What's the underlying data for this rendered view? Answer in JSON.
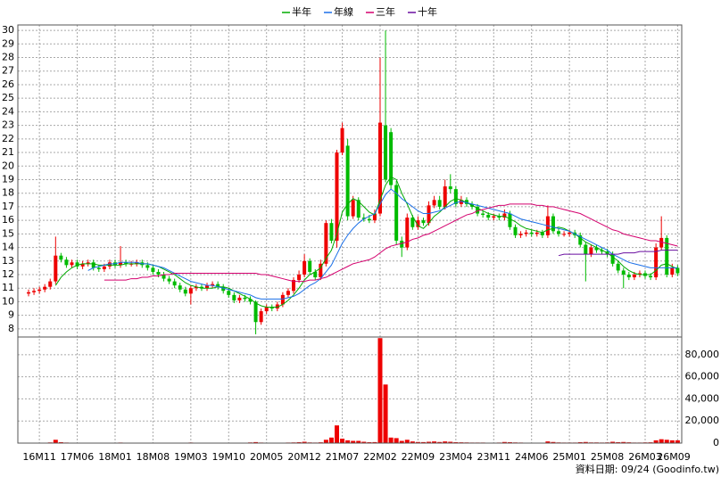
{
  "chart_data": {
    "type": "candlestick",
    "legend": "top",
    "grid": true,
    "source": "資料日期: 09/24 (Goodinfo.tw)",
    "up_color": "#ee0000",
    "down_color": "#00bb00",
    "categories": [
      null,
      null,
      "16M11",
      null,
      null,
      null,
      null,
      null,
      null,
      "17M06",
      null,
      null,
      null,
      null,
      null,
      null,
      "18M01",
      null,
      null,
      null,
      null,
      null,
      null,
      "18M08",
      null,
      null,
      null,
      null,
      null,
      null,
      "19M03",
      null,
      null,
      null,
      null,
      null,
      null,
      "19M10",
      null,
      null,
      null,
      null,
      null,
      null,
      "20M05",
      null,
      null,
      null,
      null,
      null,
      null,
      "20M12",
      null,
      null,
      null,
      null,
      null,
      null,
      "21M07",
      null,
      null,
      null,
      null,
      null,
      null,
      "22M02",
      null,
      null,
      null,
      null,
      null,
      null,
      "22M09",
      null,
      null,
      null,
      null,
      null,
      null,
      "23M04",
      null,
      null,
      null,
      null,
      null,
      null,
      "23M11",
      null,
      null,
      null,
      null,
      null,
      null,
      "24M06",
      null,
      null,
      null,
      null,
      null,
      null,
      "25M01",
      null,
      null,
      null,
      null,
      null,
      null,
      "25M08",
      null,
      null,
      null,
      null,
      null,
      null,
      "26M03",
      null,
      null,
      null,
      null,
      null,
      "26M09"
    ],
    "open": [
      10.6,
      10.7,
      10.8,
      10.9,
      11.1,
      11.5,
      13.4,
      13.1,
      12.7,
      12.9,
      12.6,
      12.8,
      12.9,
      12.5,
      12.4,
      12.6,
      12.9,
      12.7,
      12.9,
      12.8,
      12.8,
      12.9,
      12.7,
      12.5,
      12.2,
      12.0,
      11.7,
      11.5,
      11.2,
      10.9,
      10.6,
      11.0,
      11.1,
      11.0,
      11.2,
      11.3,
      11.1,
      10.8,
      10.5,
      10.1,
      10.3,
      10.2,
      10.0,
      8.5,
      9.3,
      9.6,
      9.5,
      9.8,
      10.5,
      10.8,
      11.6,
      12.0,
      13.0,
      12.2,
      11.8,
      12.8,
      15.8,
      14.5,
      21.0,
      21.5,
      16.3,
      17.5,
      16.2,
      16.1,
      16.0,
      16.5,
      23.0,
      22.5,
      18.6,
      14.5,
      14.0,
      16.2,
      15.5,
      16.0,
      15.8,
      17.1,
      17.5,
      17.0,
      18.5,
      18.3,
      17.2,
      17.5,
      17.2,
      17.0,
      16.5,
      16.4,
      16.2,
      16.3,
      16.2,
      16.5,
      15.5,
      14.9,
      15.0,
      15.1,
      15.0,
      15.1,
      14.9,
      16.3,
      15.2,
      15.0,
      15.0,
      15.1,
      14.9,
      14.2,
      13.5,
      14.0,
      13.8,
      13.7,
      13.5,
      12.8,
      12.3,
      12.0,
      11.8,
      12.0,
      12.1,
      11.9,
      11.8,
      14.0,
      14.7,
      12.0,
      12.5
    ],
    "high": [
      10.9,
      11.0,
      11.1,
      11.3,
      11.7,
      14.8,
      13.6,
      13.3,
      13.1,
      13.1,
      13.0,
      13.1,
      13.1,
      12.7,
      12.8,
      13.1,
      13.1,
      14.1,
      13.1,
      13.0,
      13.1,
      13.1,
      12.9,
      12.7,
      12.4,
      12.2,
      11.9,
      11.7,
      11.4,
      11.1,
      11.2,
      11.3,
      11.3,
      11.4,
      11.5,
      11.5,
      11.3,
      11.0,
      10.7,
      10.5,
      10.5,
      10.4,
      10.1,
      9.5,
      9.8,
      9.8,
      10.0,
      10.7,
      11.0,
      11.8,
      12.3,
      13.5,
      13.2,
      12.4,
      13.1,
      16.0,
      16.1,
      21.2,
      23.2,
      22.0,
      17.8,
      17.7,
      16.5,
      16.4,
      16.8,
      28.0,
      30.0,
      22.8,
      18.9,
      14.8,
      16.5,
      16.4,
      16.3,
      16.2,
      17.4,
      17.8,
      17.8,
      19.0,
      19.4,
      18.5,
      17.8,
      17.7,
      17.4,
      17.2,
      16.7,
      16.6,
      16.5,
      16.5,
      16.8,
      16.7,
      15.7,
      15.2,
      15.3,
      15.3,
      15.3,
      15.3,
      17.1,
      16.5,
      15.4,
      15.2,
      15.3,
      15.3,
      15.1,
      14.4,
      14.2,
      14.2,
      14.0,
      13.9,
      13.7,
      13.0,
      12.5,
      12.2,
      12.2,
      12.3,
      12.3,
      12.1,
      14.3,
      16.3,
      14.9,
      12.8,
      12.7
    ],
    "low": [
      10.4,
      10.5,
      10.6,
      10.7,
      10.9,
      11.3,
      12.9,
      12.5,
      12.5,
      12.4,
      12.4,
      12.6,
      12.3,
      12.2,
      12.2,
      12.4,
      12.5,
      12.5,
      12.6,
      12.6,
      12.6,
      12.5,
      12.3,
      12.0,
      11.8,
      11.5,
      11.3,
      11.0,
      10.7,
      10.4,
      9.8,
      10.8,
      10.8,
      10.8,
      11.0,
      10.9,
      10.6,
      10.3,
      9.9,
      9.9,
      10.0,
      9.8,
      7.6,
      8.3,
      9.1,
      9.3,
      9.3,
      9.6,
      10.3,
      10.6,
      11.4,
      11.8,
      12.0,
      11.6,
      11.6,
      12.6,
      14.3,
      14.0,
      20.8,
      16.0,
      16.1,
      16.0,
      15.9,
      15.8,
      15.8,
      16.3,
      18.8,
      18.3,
      14.2,
      13.3,
      13.8,
      15.3,
      15.3,
      15.6,
      15.6,
      16.9,
      16.8,
      16.8,
      18.0,
      17.0,
      17.0,
      17.0,
      16.8,
      16.3,
      16.2,
      16.0,
      16.0,
      16.0,
      16.0,
      15.3,
      14.7,
      14.7,
      14.8,
      14.8,
      14.8,
      14.7,
      14.7,
      15.0,
      14.8,
      14.8,
      14.8,
      14.7,
      14.0,
      11.5,
      13.3,
      13.6,
      13.5,
      13.3,
      12.6,
      12.1,
      11.0,
      11.6,
      11.6,
      11.8,
      11.7,
      11.6,
      11.6,
      13.8,
      11.8,
      11.8,
      11.9
    ],
    "close": [
      10.7,
      10.8,
      10.9,
      11.1,
      11.5,
      13.4,
      13.1,
      12.7,
      12.9,
      12.6,
      12.8,
      12.9,
      12.5,
      12.4,
      12.6,
      12.9,
      12.7,
      12.9,
      12.8,
      12.8,
      12.9,
      12.7,
      12.5,
      12.2,
      12.0,
      11.7,
      11.5,
      11.2,
      10.9,
      10.6,
      11.0,
      11.1,
      11.0,
      11.2,
      11.3,
      11.1,
      10.8,
      10.5,
      10.1,
      10.3,
      10.2,
      10.0,
      8.5,
      9.3,
      9.6,
      9.5,
      9.8,
      10.5,
      10.8,
      11.6,
      12.0,
      13.0,
      12.2,
      11.8,
      12.8,
      15.8,
      14.5,
      21.0,
      22.8,
      16.3,
      17.5,
      16.2,
      16.1,
      16.0,
      16.5,
      23.2,
      19.0,
      18.6,
      14.5,
      14.0,
      16.2,
      15.5,
      16.0,
      15.8,
      17.1,
      17.5,
      17.0,
      18.5,
      18.3,
      17.2,
      17.5,
      17.2,
      17.0,
      16.5,
      16.4,
      16.2,
      16.3,
      16.2,
      16.5,
      15.5,
      14.9,
      15.0,
      15.1,
      15.0,
      15.1,
      14.9,
      16.3,
      15.2,
      15.0,
      15.0,
      15.1,
      14.9,
      14.2,
      13.5,
      14.0,
      13.8,
      13.7,
      13.5,
      12.8,
      12.3,
      12.0,
      11.8,
      12.0,
      12.1,
      11.9,
      11.8,
      14.0,
      14.7,
      12.0,
      12.5,
      12.1
    ],
    "series": [
      {
        "name": "半年",
        "color": "#00aa00",
        "values": [
          null,
          null,
          null,
          null,
          null,
          11.2,
          11.8,
          12.2,
          12.5,
          12.7,
          12.8,
          12.8,
          12.8,
          12.7,
          12.7,
          12.7,
          12.7,
          12.7,
          12.8,
          12.8,
          12.8,
          12.8,
          12.8,
          12.7,
          12.6,
          12.4,
          12.2,
          12.0,
          11.7,
          11.4,
          11.2,
          11.1,
          11.0,
          11.0,
          11.0,
          11.1,
          11.1,
          11.0,
          10.8,
          10.6,
          10.4,
          10.2,
          9.9,
          9.7,
          9.6,
          9.6,
          9.6,
          9.8,
          10.1,
          10.5,
          11.0,
          11.6,
          12.0,
          12.2,
          12.5,
          13.2,
          13.8,
          15.0,
          16.6,
          17.2,
          17.6,
          17.4,
          17.0,
          16.6,
          16.4,
          17.5,
          18.6,
          19.2,
          19.0,
          18.0,
          17.2,
          16.3,
          15.6,
          15.4,
          15.8,
          16.3,
          16.6,
          17.0,
          17.4,
          17.6,
          17.5,
          17.3,
          17.1,
          16.9,
          16.7,
          16.5,
          16.4,
          16.3,
          16.3,
          16.1,
          15.9,
          15.6,
          15.4,
          15.3,
          15.2,
          15.1,
          15.3,
          15.4,
          15.5,
          15.4,
          15.2,
          15.0,
          14.7,
          14.4,
          14.2,
          14.0,
          13.8,
          13.6,
          13.3,
          13.0,
          12.6,
          12.3,
          12.1,
          12.0,
          12.0,
          12.0,
          12.3,
          12.7,
          12.8,
          12.6,
          12.4
        ]
      },
      {
        "name": "年線",
        "color": "#1a6fe8",
        "values": [
          null,
          null,
          null,
          null,
          null,
          null,
          null,
          null,
          null,
          null,
          null,
          12.3,
          12.5,
          12.6,
          12.7,
          12.8,
          12.8,
          12.9,
          12.9,
          12.9,
          12.9,
          12.8,
          12.8,
          12.7,
          12.6,
          12.5,
          12.3,
          12.1,
          11.9,
          11.7,
          11.5,
          11.4,
          11.3,
          11.2,
          11.2,
          11.1,
          11.0,
          10.9,
          10.8,
          10.7,
          10.6,
          10.5,
          10.3,
          10.2,
          10.2,
          10.2,
          10.2,
          10.2,
          10.3,
          10.4,
          10.6,
          10.9,
          11.2,
          11.4,
          11.7,
          12.2,
          12.7,
          13.5,
          14.3,
          14.9,
          15.4,
          15.8,
          16.1,
          16.3,
          16.5,
          17.2,
          17.9,
          18.3,
          18.0,
          17.6,
          17.3,
          17.0,
          16.7,
          16.5,
          16.5,
          16.6,
          16.7,
          16.9,
          17.1,
          17.3,
          17.4,
          17.3,
          17.2,
          17.1,
          17.0,
          16.9,
          16.8,
          16.7,
          16.6,
          16.5,
          16.3,
          16.1,
          16.0,
          15.9,
          15.8,
          15.7,
          15.6,
          15.5,
          15.4,
          15.3,
          15.2,
          15.0,
          14.8,
          14.6,
          14.4,
          14.2,
          14.0,
          13.8,
          13.5,
          13.3,
          13.1,
          12.9,
          12.8,
          12.7,
          12.6,
          12.5,
          12.5,
          12.5,
          12.5,
          12.5,
          12.5
        ]
      },
      {
        "name": "三年",
        "color": "#d4006e",
        "values": [
          null,
          null,
          null,
          null,
          null,
          null,
          null,
          null,
          null,
          null,
          null,
          null,
          null,
          null,
          11.6,
          11.6,
          11.6,
          11.6,
          11.6,
          11.7,
          11.7,
          11.8,
          11.8,
          11.9,
          11.9,
          12.0,
          12.0,
          12.1,
          12.1,
          12.1,
          12.1,
          12.1,
          12.1,
          12.1,
          12.1,
          12.1,
          12.1,
          12.1,
          12.1,
          12.1,
          12.1,
          12.1,
          12.1,
          12.0,
          12.0,
          11.9,
          11.8,
          11.7,
          11.6,
          11.5,
          11.5,
          11.5,
          11.6,
          11.6,
          11.7,
          11.8,
          12.0,
          12.2,
          12.4,
          12.6,
          12.8,
          12.9,
          13.0,
          13.1,
          13.3,
          13.6,
          13.9,
          14.1,
          14.2,
          14.3,
          14.4,
          14.6,
          14.7,
          14.9,
          15.0,
          15.2,
          15.4,
          15.6,
          15.8,
          16.0,
          16.2,
          16.4,
          16.5,
          16.7,
          16.8,
          16.9,
          17.0,
          17.1,
          17.1,
          17.2,
          17.2,
          17.2,
          17.2,
          17.2,
          17.1,
          17.1,
          17.0,
          17.0,
          16.9,
          16.8,
          16.7,
          16.6,
          16.5,
          16.3,
          16.1,
          15.9,
          15.7,
          15.5,
          15.3,
          15.2,
          15.0,
          14.9,
          14.8,
          14.7,
          14.6,
          14.5,
          14.5,
          14.4,
          14.3,
          14.2,
          14.1
        ]
      },
      {
        "name": "十年",
        "color": "#6a0fa0",
        "values": [
          null,
          null,
          null,
          null,
          null,
          null,
          null,
          null,
          null,
          null,
          null,
          null,
          null,
          null,
          null,
          null,
          null,
          null,
          null,
          null,
          null,
          null,
          null,
          null,
          null,
          null,
          null,
          null,
          null,
          null,
          null,
          null,
          null,
          null,
          null,
          null,
          null,
          null,
          null,
          null,
          null,
          null,
          null,
          null,
          null,
          null,
          null,
          null,
          null,
          null,
          null,
          null,
          null,
          null,
          null,
          null,
          null,
          null,
          null,
          null,
          null,
          null,
          null,
          null,
          null,
          null,
          null,
          null,
          null,
          null,
          null,
          null,
          null,
          null,
          null,
          null,
          null,
          null,
          null,
          null,
          null,
          null,
          null,
          null,
          null,
          null,
          null,
          null,
          null,
          null,
          null,
          null,
          null,
          null,
          null,
          null,
          null,
          null,
          13.4,
          13.5,
          13.5,
          13.5,
          13.5,
          13.5,
          13.5,
          13.5,
          13.5,
          13.5,
          13.5,
          13.5,
          13.6,
          13.6,
          13.6,
          13.7,
          13.7,
          13.7,
          13.7,
          13.8,
          13.8,
          13.8,
          13.8
        ]
      }
    ],
    "ylim": [
      7.4,
      30.4
    ],
    "yticks": [
      8,
      9,
      10,
      11,
      12,
      13,
      14,
      15,
      16,
      17,
      18,
      19,
      20,
      21,
      22,
      23,
      24,
      25,
      26,
      27,
      28,
      29,
      30
    ],
    "volume": {
      "color": "#ee0000",
      "values": [
        300,
        300,
        300,
        400,
        600,
        3000,
        800,
        500,
        400,
        300,
        300,
        300,
        300,
        300,
        400,
        300,
        300,
        500,
        300,
        300,
        300,
        300,
        300,
        300,
        300,
        300,
        300,
        400,
        300,
        300,
        500,
        300,
        300,
        300,
        300,
        300,
        300,
        300,
        400,
        300,
        300,
        600,
        900,
        500,
        400,
        300,
        300,
        400,
        500,
        600,
        800,
        1200,
        600,
        500,
        700,
        3000,
        5000,
        16000,
        4000,
        2500,
        2000,
        2000,
        1200,
        800,
        900,
        95000,
        53000,
        5000,
        4500,
        2000,
        3000,
        1500,
        1000,
        900,
        1200,
        1500,
        1000,
        1500,
        1200,
        800,
        700,
        600,
        500,
        500,
        500,
        400,
        400,
        500,
        1000,
        800,
        600,
        500,
        400,
        400,
        400,
        400,
        1500,
        1000,
        600,
        500,
        500,
        500,
        800,
        1000,
        600,
        600,
        500,
        600,
        1200,
        800,
        1000,
        700,
        500,
        500,
        600,
        700,
        2500,
        3500,
        3000,
        2500,
        2500
      ],
      "ylim": [
        0,
        96000
      ],
      "yticks": [
        0,
        {
          "value": 20000,
          "label": "20,000"
        },
        {
          "value": 40000,
          "label": "40,000"
        },
        {
          "value": 60000,
          "label": "60,000"
        },
        {
          "value": 80000,
          "label": "80,000"
        }
      ]
    }
  }
}
